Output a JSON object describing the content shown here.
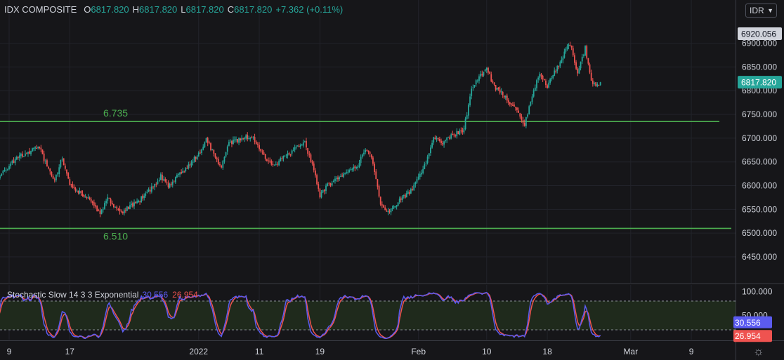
{
  "header": {
    "symbol": "IDX COMPOSITE",
    "o_label": "O",
    "o_value": "6817.820",
    "h_label": "H",
    "h_value": "6817.820",
    "l_label": "L",
    "l_value": "6817.820",
    "c_label": "C",
    "c_value": "6817.820",
    "change": "+7.362 (+0.11%)"
  },
  "currency": "IDR",
  "indicator": {
    "name": "Stochastic Slow 14 3 3 Exponential",
    "k_value": "30.556",
    "d_value": "26.954"
  },
  "colors": {
    "background": "#161619",
    "up": "#26a69a",
    "down": "#ef5350",
    "hline": "#4caf50",
    "stoch_k": "#5b5bf0",
    "stoch_d": "#ef5350",
    "band_fill": "#1f2a1c"
  },
  "chart_data": [
    {
      "type": "candlestick",
      "title": "IDX COMPOSITE",
      "ylim": [
        6400,
        6940
      ],
      "y_ticks": [
        "6450.000",
        "6500.000",
        "6550.000",
        "6600.000",
        "6650.000",
        "6700.000",
        "6750.000",
        "6800.000",
        "6850.000",
        "6900.000"
      ],
      "x_ticks": [
        {
          "label": "9",
          "date": "2021-12-09"
        },
        {
          "label": "17",
          "date": "2021-12-17"
        },
        {
          "label": "2022",
          "date": "2022-01-03"
        },
        {
          "label": "11",
          "date": "2022-01-11"
        },
        {
          "label": "19",
          "date": "2022-01-19"
        },
        {
          "label": "Feb",
          "date": "2022-02-01"
        },
        {
          "label": "10",
          "date": "2022-02-10"
        },
        {
          "label": "18",
          "date": "2022-02-18"
        },
        {
          "label": "Mar",
          "date": "2022-03-01"
        },
        {
          "label": "9",
          "date": "2022-03-09"
        }
      ],
      "price_labels": [
        {
          "value": 6920.056,
          "text": "6920.056",
          "style": "high"
        },
        {
          "value": 6817.82,
          "text": "6817.820",
          "style": "last"
        }
      ],
      "hlines": [
        {
          "value": 6735,
          "label": "6.735"
        },
        {
          "value": 6510,
          "label": "6.510"
        }
      ],
      "closes": [
        {
          "date": "2021-12-06",
          "close": 6620
        },
        {
          "date": "2021-12-07",
          "close": 6605
        },
        {
          "date": "2021-12-08",
          "close": 6625
        },
        {
          "date": "2021-12-09",
          "close": 6640
        },
        {
          "date": "2021-12-10",
          "close": 6660
        },
        {
          "date": "2021-12-13",
          "close": 6680
        },
        {
          "date": "2021-12-14",
          "close": 6640
        },
        {
          "date": "2021-12-15",
          "close": 6610
        },
        {
          "date": "2021-12-16",
          "close": 6660
        },
        {
          "date": "2021-12-17",
          "close": 6600
        },
        {
          "date": "2021-12-20",
          "close": 6565
        },
        {
          "date": "2021-12-21",
          "close": 6540
        },
        {
          "date": "2021-12-22",
          "close": 6575
        },
        {
          "date": "2021-12-23",
          "close": 6555
        },
        {
          "date": "2021-12-24",
          "close": 6545
        },
        {
          "date": "2021-12-27",
          "close": 6580
        },
        {
          "date": "2021-12-28",
          "close": 6600
        },
        {
          "date": "2021-12-29",
          "close": 6620
        },
        {
          "date": "2021-12-30",
          "close": 6600
        },
        {
          "date": "2022-01-03",
          "close": 6665
        },
        {
          "date": "2022-01-04",
          "close": 6700
        },
        {
          "date": "2022-01-05",
          "close": 6665
        },
        {
          "date": "2022-01-06",
          "close": 6640
        },
        {
          "date": "2022-01-07",
          "close": 6690
        },
        {
          "date": "2022-01-10",
          "close": 6705
        },
        {
          "date": "2022-01-11",
          "close": 6680
        },
        {
          "date": "2022-01-12",
          "close": 6650
        },
        {
          "date": "2022-01-13",
          "close": 6640
        },
        {
          "date": "2022-01-14",
          "close": 6660
        },
        {
          "date": "2022-01-17",
          "close": 6690
        },
        {
          "date": "2022-01-18",
          "close": 6645
        },
        {
          "date": "2022-01-19",
          "close": 6580
        },
        {
          "date": "2022-01-20",
          "close": 6600
        },
        {
          "date": "2022-01-21",
          "close": 6615
        },
        {
          "date": "2022-01-24",
          "close": 6640
        },
        {
          "date": "2022-01-25",
          "close": 6680
        },
        {
          "date": "2022-01-26",
          "close": 6650
        },
        {
          "date": "2022-01-27",
          "close": 6560
        },
        {
          "date": "2022-01-28",
          "close": 6545
        },
        {
          "date": "2022-01-31",
          "close": 6590
        },
        {
          "date": "2022-02-01",
          "close": 6615
        },
        {
          "date": "2022-02-02",
          "close": 6650
        },
        {
          "date": "2022-02-03",
          "close": 6700
        },
        {
          "date": "2022-02-04",
          "close": 6690
        },
        {
          "date": "2022-02-07",
          "close": 6720
        },
        {
          "date": "2022-02-08",
          "close": 6800
        },
        {
          "date": "2022-02-09",
          "close": 6830
        },
        {
          "date": "2022-02-10",
          "close": 6845
        },
        {
          "date": "2022-02-11",
          "close": 6810
        },
        {
          "date": "2022-02-14",
          "close": 6760
        },
        {
          "date": "2022-02-15",
          "close": 6730
        },
        {
          "date": "2022-02-16",
          "close": 6785
        },
        {
          "date": "2022-02-17",
          "close": 6840
        },
        {
          "date": "2022-02-18",
          "close": 6810
        },
        {
          "date": "2022-02-21",
          "close": 6900
        },
        {
          "date": "2022-02-22",
          "close": 6835
        },
        {
          "date": "2022-02-23",
          "close": 6890
        },
        {
          "date": "2022-02-24",
          "close": 6810
        },
        {
          "date": "2022-02-25",
          "close": 6817.82
        }
      ]
    },
    {
      "type": "line",
      "title": "Stochastic Slow 14 3 3 Exponential",
      "ylim": [
        0,
        100
      ],
      "y_ticks": [
        "100.000",
        "50.000"
      ],
      "band": [
        20,
        80
      ],
      "value_labels": [
        {
          "value": 30.556,
          "text": "30.556",
          "series": "K"
        },
        {
          "value": 26.954,
          "text": "26.954",
          "series": "D"
        }
      ]
    }
  ]
}
